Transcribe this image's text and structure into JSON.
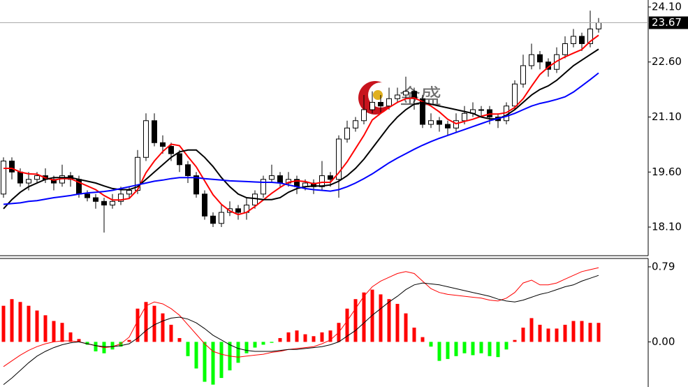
{
  "chart_data": [
    {
      "type": "candlestick",
      "watermark": "金盛",
      "open": [
        19.0,
        19.9,
        19.6,
        19.3,
        19.4,
        19.5,
        19.4,
        19.3,
        19.5,
        19.4,
        19.0,
        18.9,
        18.8,
        18.7,
        18.8,
        19.0,
        19.1,
        20.0,
        21.0,
        20.4,
        20.3,
        20.1,
        19.8,
        19.5,
        19.0,
        18.4,
        18.2,
        18.5,
        18.6,
        18.5,
        18.7,
        19.0,
        19.4,
        19.5,
        19.3,
        19.4,
        19.2,
        19.3,
        19.2,
        19.5,
        19.4,
        20.5,
        20.8,
        21.0,
        21.3,
        21.5,
        21.4,
        21.6,
        21.7,
        21.8,
        21.6,
        20.9,
        21.0,
        20.9,
        20.8,
        21.0,
        21.2,
        21.3,
        21.3,
        21.1,
        21.0,
        21.4,
        22.0,
        22.5,
        22.8,
        22.6,
        22.4,
        22.8,
        23.1,
        23.3,
        23.1,
        23.5
      ],
      "high": [
        20.0,
        20.0,
        19.7,
        19.6,
        19.6,
        19.7,
        19.5,
        19.8,
        19.6,
        19.5,
        19.1,
        19.0,
        18.9,
        19.0,
        19.2,
        19.2,
        20.2,
        21.2,
        21.2,
        20.6,
        20.4,
        20.2,
        19.9,
        19.6,
        19.1,
        18.5,
        18.7,
        18.8,
        18.7,
        18.9,
        19.1,
        19.5,
        19.8,
        19.6,
        19.6,
        19.5,
        19.4,
        19.4,
        19.9,
        19.6,
        20.6,
        21.0,
        21.1,
        21.7,
        21.8,
        21.7,
        21.9,
        21.9,
        22.2,
        21.9,
        21.7,
        21.2,
        21.1,
        21.0,
        21.2,
        21.4,
        21.5,
        21.4,
        21.4,
        21.2,
        21.5,
        22.1,
        22.8,
        23.1,
        22.9,
        22.7,
        23.0,
        23.3,
        23.5,
        23.4,
        24.0,
        23.8
      ],
      "low": [
        18.9,
        19.4,
        19.2,
        19.1,
        19.3,
        19.3,
        19.1,
        19.2,
        19.2,
        18.9,
        18.8,
        18.6,
        17.95,
        18.6,
        18.7,
        18.9,
        19.0,
        19.9,
        20.3,
        20.1,
        19.9,
        19.6,
        19.3,
        18.9,
        18.3,
        18.1,
        18.1,
        18.4,
        18.3,
        18.3,
        18.6,
        18.9,
        19.3,
        19.2,
        19.2,
        19.0,
        19.1,
        19.0,
        19.1,
        19.2,
        18.9,
        20.4,
        20.7,
        20.9,
        21.2,
        21.2,
        21.3,
        21.5,
        21.6,
        21.3,
        20.8,
        20.8,
        20.7,
        20.6,
        20.7,
        20.9,
        21.1,
        21.1,
        20.9,
        20.8,
        20.9,
        21.3,
        21.9,
        22.4,
        22.4,
        22.2,
        22.3,
        22.7,
        23.0,
        22.9,
        23.0,
        23.4
      ],
      "close": [
        19.9,
        19.6,
        19.3,
        19.4,
        19.5,
        19.4,
        19.3,
        19.5,
        19.4,
        19.0,
        18.9,
        18.8,
        18.7,
        18.8,
        19.0,
        19.1,
        20.0,
        21.0,
        20.4,
        20.3,
        20.1,
        19.8,
        19.5,
        19.0,
        18.4,
        18.2,
        18.5,
        18.6,
        18.5,
        18.7,
        19.0,
        19.4,
        19.5,
        19.3,
        19.4,
        19.2,
        19.3,
        19.2,
        19.5,
        19.4,
        20.5,
        20.8,
        21.0,
        21.3,
        21.5,
        21.4,
        21.6,
        21.7,
        21.8,
        21.6,
        20.9,
        21.0,
        20.9,
        20.8,
        21.0,
        21.2,
        21.3,
        21.3,
        21.1,
        21.0,
        21.4,
        22.0,
        22.5,
        22.8,
        22.6,
        22.4,
        22.8,
        23.1,
        23.3,
        23.1,
        23.5,
        23.67
      ],
      "lines": [
        {
          "color": "#ff0000",
          "values": [
            19.7,
            19.7,
            19.6,
            19.55,
            19.54,
            19.44,
            19.38,
            19.42,
            19.42,
            19.32,
            19.22,
            19.12,
            18.96,
            18.84,
            18.84,
            18.88,
            19.12,
            19.58,
            19.9,
            20.16,
            20.36,
            20.32,
            20.02,
            19.74,
            19.36,
            18.98,
            18.72,
            18.54,
            18.44,
            18.5,
            18.66,
            18.84,
            19.02,
            19.18,
            19.32,
            19.36,
            19.34,
            19.28,
            19.32,
            19.32,
            19.58,
            19.88,
            20.24,
            20.6,
            21.02,
            21.2,
            21.36,
            21.5,
            21.6,
            21.62,
            21.52,
            21.4,
            21.24,
            21.04,
            20.92,
            20.98,
            21.04,
            21.12,
            21.18,
            21.18,
            21.22,
            21.36,
            21.6,
            21.94,
            22.26,
            22.46,
            22.62,
            22.74,
            22.84,
            22.94,
            23.16,
            23.33
          ]
        },
        {
          "color": "#000000",
          "values": [
            18.6,
            18.85,
            19.05,
            19.2,
            19.3,
            19.4,
            19.45,
            19.45,
            19.45,
            19.4,
            19.35,
            19.3,
            19.22,
            19.15,
            19.12,
            19.12,
            19.2,
            19.4,
            19.6,
            19.8,
            20.0,
            20.15,
            20.2,
            20.2,
            20.0,
            19.75,
            19.45,
            19.2,
            19.0,
            18.9,
            18.88,
            18.85,
            18.85,
            18.9,
            19.05,
            19.15,
            19.2,
            19.22,
            19.22,
            19.25,
            19.35,
            19.5,
            19.7,
            19.95,
            20.25,
            20.55,
            20.85,
            21.1,
            21.3,
            21.45,
            21.5,
            21.45,
            21.4,
            21.35,
            21.3,
            21.25,
            21.2,
            21.1,
            21.05,
            21.05,
            21.15,
            21.3,
            21.5,
            21.7,
            21.85,
            21.95,
            22.1,
            22.3,
            22.5,
            22.65,
            22.8,
            22.95
          ]
        },
        {
          "color": "#0000ff",
          "values": [
            18.72,
            18.74,
            18.76,
            18.8,
            18.82,
            18.86,
            18.9,
            18.93,
            18.96,
            19.0,
            19.03,
            19.05,
            19.07,
            19.1,
            19.15,
            19.2,
            19.25,
            19.3,
            19.35,
            19.38,
            19.42,
            19.45,
            19.45,
            19.45,
            19.42,
            19.4,
            19.38,
            19.36,
            19.35,
            19.34,
            19.33,
            19.32,
            19.32,
            19.3,
            19.25,
            19.2,
            19.15,
            19.12,
            19.1,
            19.08,
            19.12,
            19.2,
            19.3,
            19.42,
            19.55,
            19.7,
            19.85,
            19.98,
            20.1,
            20.22,
            20.33,
            20.43,
            20.52,
            20.6,
            20.68,
            20.76,
            20.84,
            20.92,
            21.0,
            21.06,
            21.12,
            21.2,
            21.3,
            21.4,
            21.47,
            21.52,
            21.58,
            21.65,
            21.78,
            21.95,
            22.12,
            22.3
          ]
        }
      ],
      "last_price": 23.67,
      "ylim": [
        17.32,
        24.29
      ],
      "yticks": [
        {
          "value": 24.1,
          "label": "24.10"
        },
        {
          "value": 22.6,
          "label": "22.60"
        },
        {
          "value": 21.1,
          "label": "21.10"
        },
        {
          "value": 19.6,
          "label": "19.60"
        },
        {
          "value": 18.1,
          "label": "18.10"
        }
      ]
    },
    {
      "type": "macd",
      "values": [
        0.38,
        0.45,
        0.42,
        0.38,
        0.33,
        0.28,
        0.22,
        0.2,
        0.1,
        0.03,
        -0.03,
        -0.1,
        -0.12,
        -0.08,
        -0.05,
        0.02,
        0.35,
        0.42,
        0.38,
        0.3,
        0.18,
        0.04,
        -0.15,
        -0.28,
        -0.42,
        -0.45,
        -0.38,
        -0.3,
        -0.22,
        -0.12,
        -0.06,
        -0.03,
        -0.01,
        0.04,
        0.1,
        0.12,
        0.08,
        0.06,
        0.1,
        0.12,
        0.2,
        0.35,
        0.45,
        0.52,
        0.55,
        0.5,
        0.45,
        0.4,
        0.3,
        0.15,
        0.05,
        -0.05,
        -0.2,
        -0.18,
        -0.15,
        -0.12,
        -0.14,
        -0.12,
        -0.15,
        -0.16,
        -0.08,
        0.02,
        0.15,
        0.25,
        0.18,
        0.14,
        0.14,
        0.18,
        0.22,
        0.22,
        0.2,
        0.2
      ],
      "up_color": "#ff0000",
      "down_color": "#00ff00",
      "lines": [
        {
          "color": "#ff0000",
          "values": [
            -0.26,
            -0.2,
            -0.14,
            -0.09,
            -0.05,
            -0.02,
            0.0,
            0.01,
            0.01,
            0.0,
            -0.02,
            -0.04,
            -0.06,
            -0.05,
            -0.02,
            0.05,
            0.22,
            0.38,
            0.42,
            0.4,
            0.35,
            0.28,
            0.18,
            0.08,
            -0.02,
            -0.1,
            -0.13,
            -0.15,
            -0.16,
            -0.15,
            -0.14,
            -0.13,
            -0.11,
            -0.1,
            -0.08,
            -0.07,
            -0.06,
            -0.05,
            -0.02,
            0.02,
            0.1,
            0.22,
            0.35,
            0.48,
            0.58,
            0.64,
            0.68,
            0.72,
            0.74,
            0.72,
            0.64,
            0.56,
            0.52,
            0.5,
            0.49,
            0.48,
            0.47,
            0.46,
            0.44,
            0.43,
            0.46,
            0.52,
            0.62,
            0.65,
            0.6,
            0.6,
            0.62,
            0.66,
            0.7,
            0.74,
            0.76,
            0.78
          ]
        },
        {
          "color": "#000000",
          "values": [
            -0.45,
            -0.38,
            -0.3,
            -0.22,
            -0.15,
            -0.1,
            -0.06,
            -0.03,
            -0.01,
            0.0,
            -0.02,
            -0.04,
            -0.05,
            -0.05,
            -0.04,
            -0.02,
            0.04,
            0.12,
            0.18,
            0.22,
            0.25,
            0.26,
            0.24,
            0.2,
            0.14,
            0.07,
            0.02,
            -0.03,
            -0.07,
            -0.09,
            -0.1,
            -0.1,
            -0.1,
            -0.09,
            -0.08,
            -0.08,
            -0.07,
            -0.06,
            -0.05,
            -0.03,
            0.0,
            0.06,
            0.12,
            0.2,
            0.28,
            0.35,
            0.42,
            0.48,
            0.55,
            0.6,
            0.62,
            0.61,
            0.6,
            0.58,
            0.56,
            0.54,
            0.52,
            0.5,
            0.48,
            0.45,
            0.43,
            0.42,
            0.44,
            0.47,
            0.5,
            0.52,
            0.55,
            0.58,
            0.6,
            0.64,
            0.67,
            0.7
          ]
        }
      ],
      "ylim": [
        -0.475,
        0.878
      ],
      "yticks": [
        0.79,
        {
          "value": 0,
          "label": "0.00"
        }
      ]
    }
  ]
}
